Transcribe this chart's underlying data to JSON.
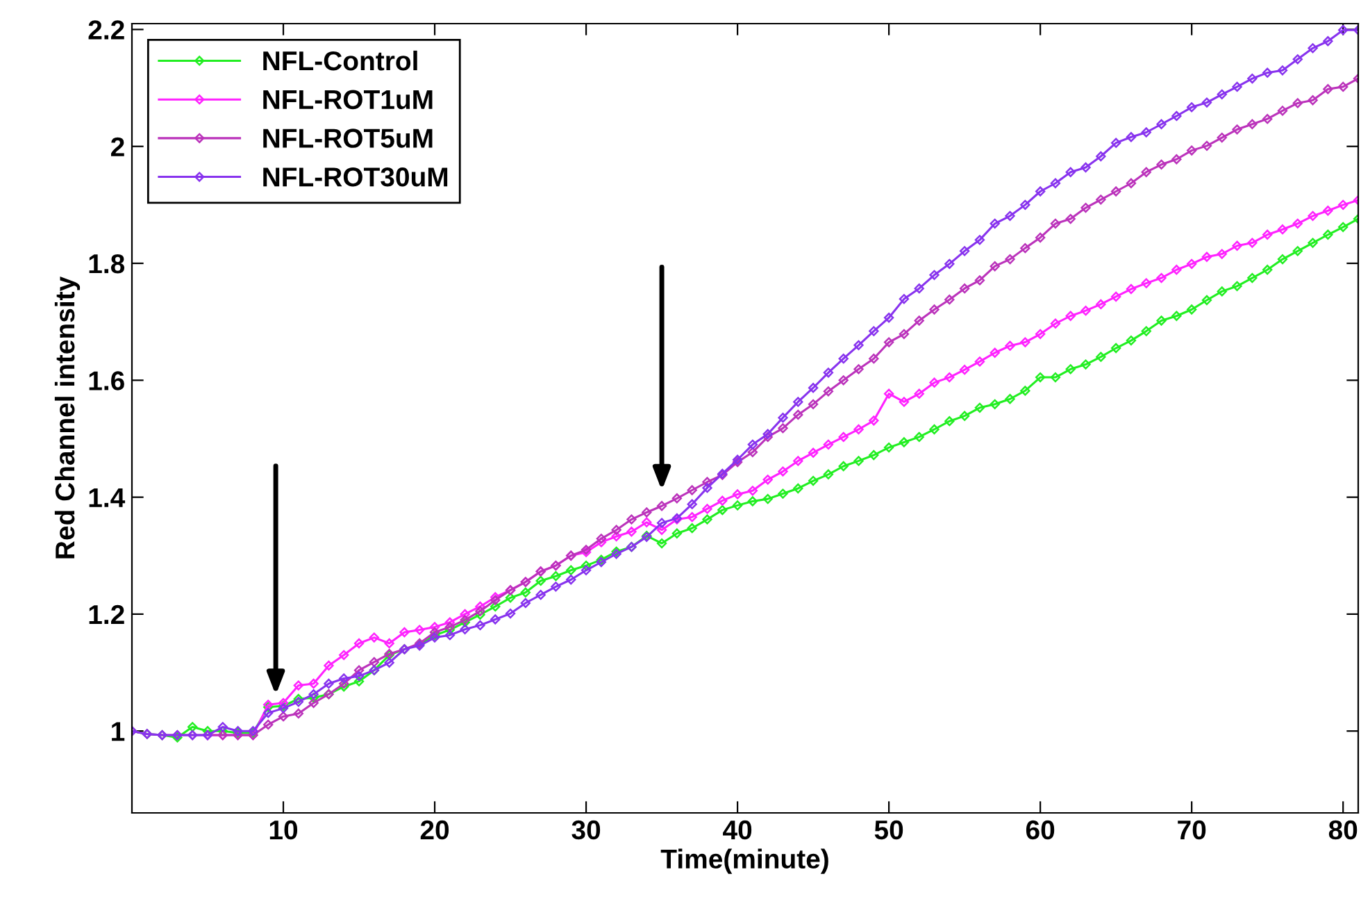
{
  "chart_data": {
    "type": "line",
    "xlabel": "Time(minute)",
    "ylabel": "Red Channel intensity",
    "x": [
      0,
      1,
      2,
      3,
      4,
      5,
      6,
      7,
      8,
      9,
      10,
      11,
      12,
      13,
      14,
      15,
      16,
      17,
      18,
      19,
      20,
      21,
      22,
      23,
      24,
      25,
      26,
      27,
      28,
      29,
      30,
      31,
      32,
      33,
      34,
      35,
      36,
      37,
      38,
      39,
      40,
      41,
      42,
      43,
      44,
      45,
      46,
      47,
      48,
      49,
      50,
      51,
      52,
      53,
      54,
      55,
      56,
      57,
      58,
      59,
      60,
      61,
      62,
      63,
      64,
      65,
      66,
      67,
      68,
      69,
      70,
      71,
      72,
      73,
      74,
      75,
      76,
      77,
      78,
      79,
      80,
      81
    ],
    "series": [
      {
        "name": "NFL-Control",
        "color": "#22ee22",
        "values": [
          1.0,
          0.995,
          0.993,
          0.989,
          1.007,
          1.0,
          1.0,
          0.997,
          0.997,
          1.041,
          1.043,
          1.055,
          1.057,
          1.063,
          1.076,
          1.085,
          1.104,
          1.13,
          1.14,
          1.148,
          1.164,
          1.173,
          1.186,
          1.199,
          1.213,
          1.228,
          1.237,
          1.257,
          1.265,
          1.275,
          1.283,
          1.293,
          1.307,
          1.315,
          1.334,
          1.321,
          1.338,
          1.347,
          1.362,
          1.378,
          1.386,
          1.393,
          1.397,
          1.406,
          1.415,
          1.428,
          1.439,
          1.453,
          1.462,
          1.472,
          1.485,
          1.494,
          1.503,
          1.516,
          1.53,
          1.539,
          1.553,
          1.559,
          1.568,
          1.582,
          1.605,
          1.605,
          1.619,
          1.627,
          1.64,
          1.655,
          1.668,
          1.684,
          1.702,
          1.71,
          1.721,
          1.737,
          1.752,
          1.761,
          1.775,
          1.789,
          1.807,
          1.821,
          1.835,
          1.849,
          1.862,
          1.876
        ]
      },
      {
        "name": "NFL-ROT1uM",
        "color": "#ff22ff",
        "values": [
          null,
          null,
          null,
          null,
          null,
          0.993,
          0.993,
          0.993,
          0.993,
          1.045,
          1.048,
          1.078,
          1.081,
          1.112,
          1.13,
          1.15,
          1.16,
          1.15,
          1.169,
          1.173,
          1.178,
          1.186,
          1.2,
          1.213,
          1.229,
          1.241,
          1.255,
          1.273,
          1.283,
          1.3,
          1.306,
          1.323,
          1.333,
          1.341,
          1.357,
          1.344,
          1.362,
          1.366,
          1.38,
          1.394,
          1.405,
          1.411,
          1.43,
          1.444,
          1.462,
          1.476,
          1.49,
          1.503,
          1.516,
          1.531,
          1.577,
          1.563,
          1.577,
          1.596,
          1.605,
          1.618,
          1.632,
          1.647,
          1.659,
          1.665,
          1.679,
          1.697,
          1.71,
          1.719,
          1.73,
          1.743,
          1.756,
          1.766,
          1.775,
          1.789,
          1.799,
          1.811,
          1.816,
          1.83,
          1.835,
          1.849,
          1.858,
          1.868,
          1.881,
          1.89,
          1.9,
          1.908
        ]
      },
      {
        "name": "NFL-ROT5uM",
        "color": "#bb33bb",
        "values": [
          1.0,
          0.995,
          0.993,
          0.993,
          0.993,
          0.993,
          0.993,
          0.993,
          0.993,
          1.011,
          1.025,
          1.03,
          1.048,
          1.063,
          1.081,
          1.104,
          1.118,
          1.132,
          1.14,
          1.15,
          1.169,
          1.178,
          1.19,
          1.205,
          1.224,
          1.241,
          1.255,
          1.273,
          1.283,
          1.3,
          1.31,
          1.329,
          1.344,
          1.362,
          1.374,
          1.385,
          1.398,
          1.412,
          1.426,
          1.438,
          1.46,
          1.477,
          1.503,
          1.518,
          1.541,
          1.559,
          1.581,
          1.6,
          1.619,
          1.637,
          1.665,
          1.679,
          1.702,
          1.721,
          1.738,
          1.757,
          1.771,
          1.795,
          1.807,
          1.826,
          1.844,
          1.868,
          1.876,
          1.895,
          1.909,
          1.923,
          1.937,
          1.956,
          1.969,
          1.978,
          1.993,
          2.001,
          2.015,
          2.029,
          2.038,
          2.047,
          2.061,
          2.074,
          2.079,
          2.098,
          2.102,
          2.116
        ]
      },
      {
        "name": "NFL-ROT30uM",
        "color": "#8833ee",
        "values": [
          1.0,
          0.995,
          0.993,
          0.993,
          0.993,
          0.993,
          1.007,
          1.0,
          1.0,
          1.031,
          1.039,
          1.05,
          1.063,
          1.081,
          1.09,
          1.094,
          1.104,
          1.117,
          1.14,
          1.146,
          1.16,
          1.164,
          1.174,
          1.181,
          1.191,
          1.201,
          1.219,
          1.233,
          1.247,
          1.259,
          1.275,
          1.289,
          1.303,
          1.315,
          1.332,
          1.356,
          1.364,
          1.388,
          1.416,
          1.44,
          1.464,
          1.49,
          1.508,
          1.536,
          1.563,
          1.587,
          1.613,
          1.637,
          1.66,
          1.684,
          1.707,
          1.739,
          1.757,
          1.78,
          1.799,
          1.821,
          1.84,
          1.868,
          1.881,
          1.9,
          1.923,
          1.937,
          1.956,
          1.964,
          1.983,
          2.006,
          2.016,
          2.024,
          2.038,
          2.052,
          2.067,
          2.075,
          2.089,
          2.102,
          2.116,
          2.126,
          2.13,
          2.149,
          2.168,
          2.18,
          2.199,
          2.199
        ]
      }
    ],
    "xlim": [
      0,
      81
    ],
    "ylim": [
      0.86,
      2.21
    ],
    "xticks": [
      10,
      20,
      30,
      40,
      50,
      60,
      70,
      80
    ],
    "yticks": [
      1,
      1.2,
      1.4,
      1.6,
      1.8,
      2,
      2.2
    ],
    "grid": false,
    "legend": "top left",
    "marker": "diamond",
    "line_style": "solid"
  }
}
